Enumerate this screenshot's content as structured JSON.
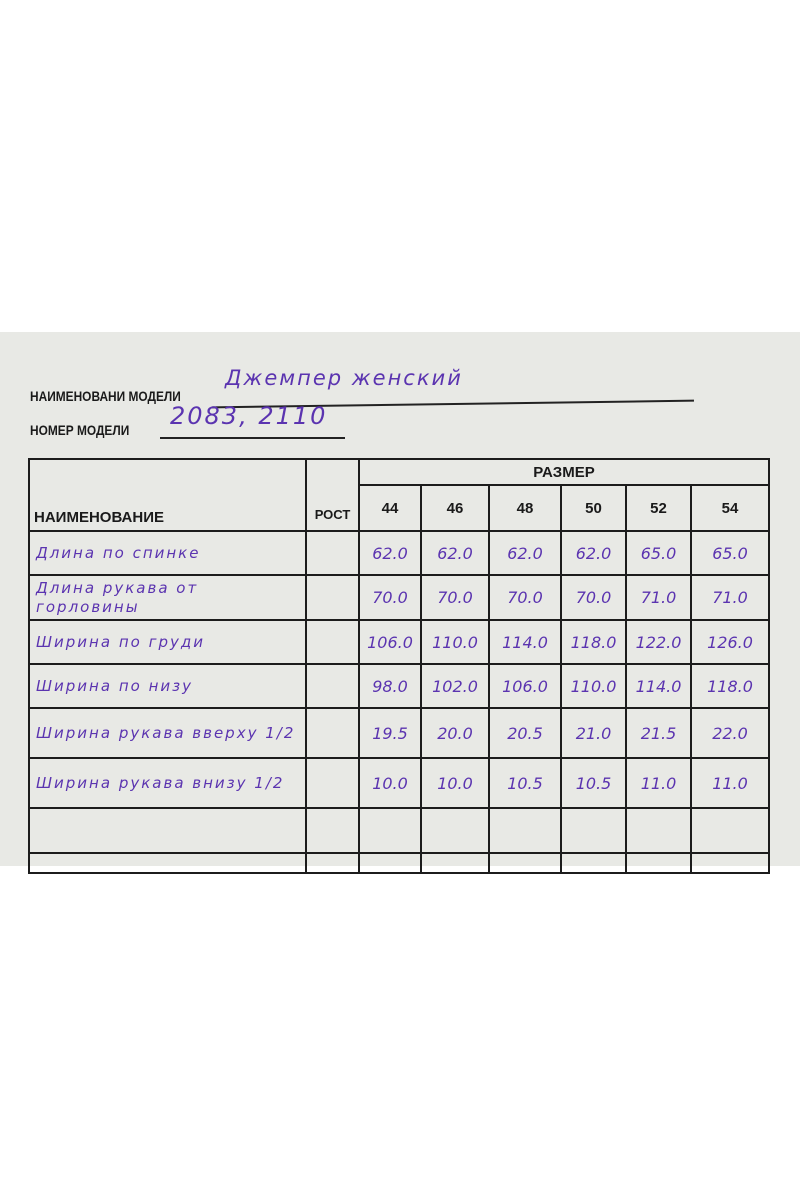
{
  "form": {
    "model_name_label": "НАИМЕНОВАНИ МОДЕЛИ",
    "model_name_value": "Джемпер женский",
    "model_number_label": "НОМЕР МОДЕЛИ",
    "model_number_value": "2083, 2110"
  },
  "table": {
    "header_name": "НАИМЕНОВАНИЕ",
    "header_height": "РОСТ",
    "header_size": "РАЗМЕР",
    "sizes": [
      "44",
      "46",
      "48",
      "50",
      "52",
      "54"
    ],
    "rows": [
      {
        "name": "Длина по спинке",
        "values": [
          "62.0",
          "62.0",
          "62.0",
          "62.0",
          "65.0",
          "65.0"
        ]
      },
      {
        "name": "Длина рукава от горловины",
        "values": [
          "70.0",
          "70.0",
          "70.0",
          "70.0",
          "71.0",
          "71.0"
        ]
      },
      {
        "name": "Ширина по груди",
        "values": [
          "106.0",
          "110.0",
          "114.0",
          "118.0",
          "122.0",
          "126.0"
        ]
      },
      {
        "name": "Ширина по низу",
        "values": [
          "98.0",
          "102.0",
          "106.0",
          "110.0",
          "114.0",
          "118.0"
        ]
      },
      {
        "name": "Ширина рукава вверху 1/2",
        "values": [
          "19.5",
          "20.0",
          "20.5",
          "21.0",
          "21.5",
          "22.0"
        ]
      },
      {
        "name": "Ширина рукава внизу 1/2",
        "values": [
          "10.0",
          "10.0",
          "10.5",
          "10.5",
          "11.0",
          "11.0"
        ]
      }
    ]
  },
  "colors": {
    "ink": "#5b34b0",
    "paper": "#e8e9e5"
  }
}
